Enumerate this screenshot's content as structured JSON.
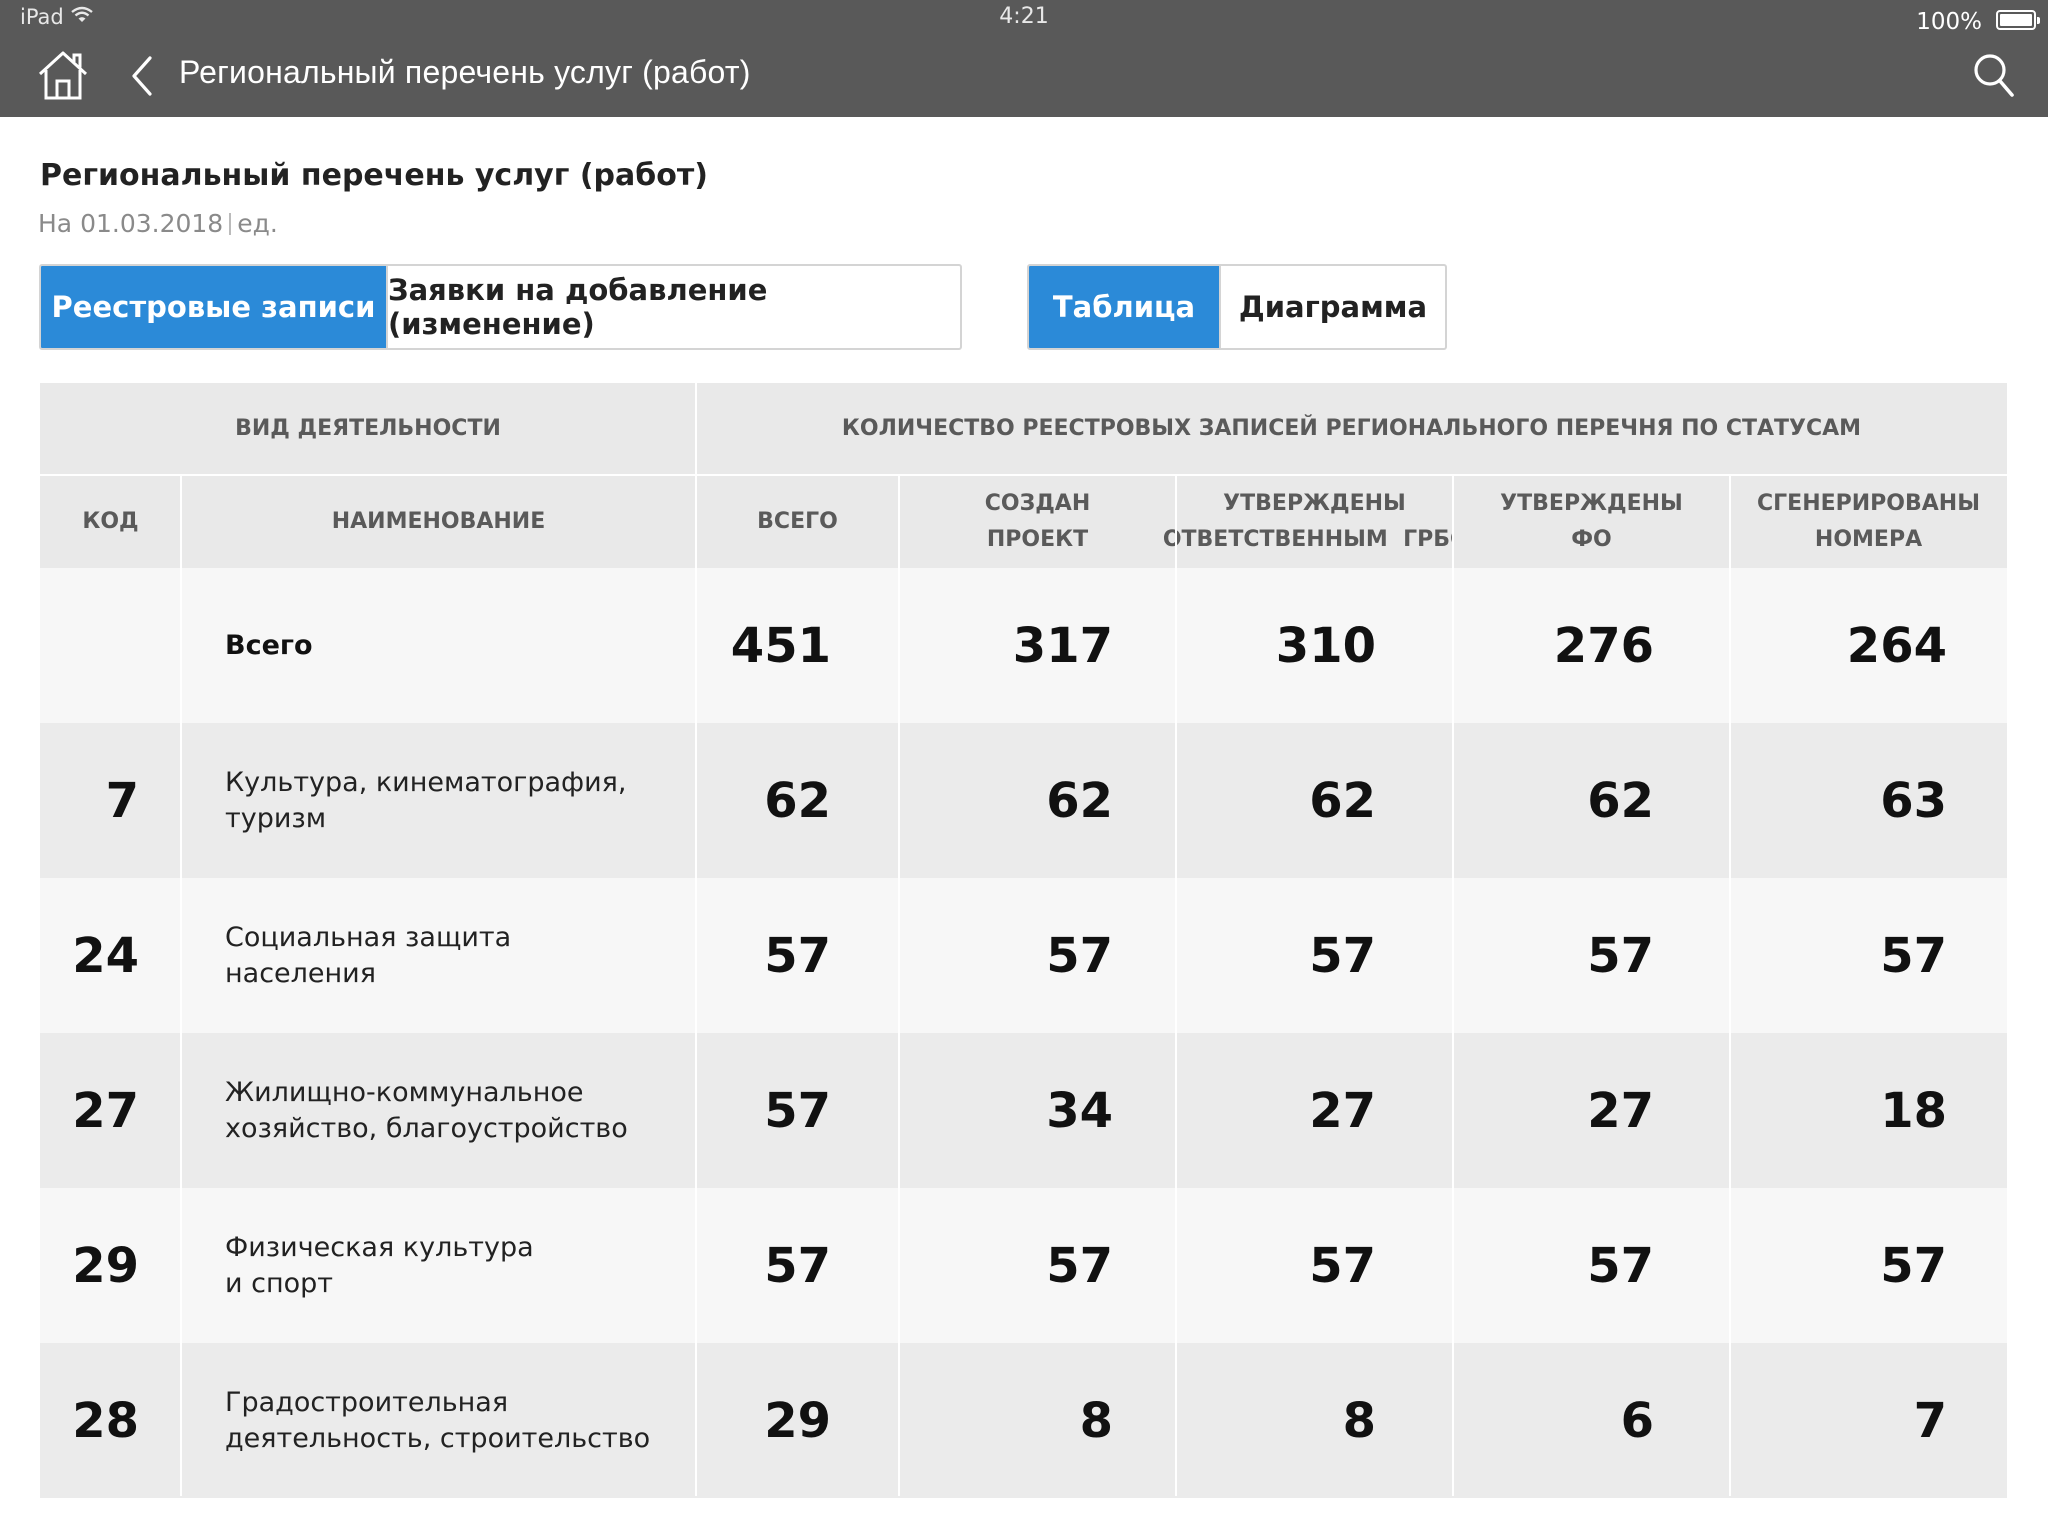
{
  "status_bar": {
    "device": "iPad",
    "time": "4:21",
    "battery": "100%"
  },
  "nav": {
    "title": "Региональный перечень услуг (работ)",
    "home_icon": "home-icon",
    "back_icon": "chevron-left-icon",
    "search_icon": "search-icon"
  },
  "heading": {
    "title": "Региональный перечень услуг (работ)",
    "date": "На 01.03.2018",
    "unit": "ед."
  },
  "tabs_mode": {
    "items": [
      "Реестровые записи",
      "Заявки на добавление (изменение)"
    ],
    "active": 0
  },
  "tabs_view": {
    "items": [
      "Таблица",
      "Диаграмма"
    ],
    "active": 0
  },
  "colors": {
    "accent": "#2b8ad8",
    "topbar": "#595959",
    "header_bg": "#e9e9e9",
    "row_alt": "#ebebeb",
    "row_light": "#f7f7f7"
  },
  "table": {
    "group_headers": {
      "activity": "ВИД ДЕЯТЕЛЬНОСТИ",
      "statuses": "КОЛИЧЕСТВО РЕЕСТРОВЫХ ЗАПИСЕЙ РЕГИОНАЛЬНОГО ПЕРЕЧНЯ ПО СТАТУСАМ"
    },
    "columns": {
      "code": "КОД",
      "name": "НАИМЕНОВАНИЕ",
      "total": "ВСЕГО",
      "created_l1": "СОЗДАН",
      "created_l2": "ПРОЕКТ",
      "approved_grbs_l1": "УТВЕРЖДЕНЫ",
      "approved_grbs_l2": "ОТВЕТСТВЕННЫМ  ГРБС",
      "approved_fo_l1": "УТВЕРЖДЕНЫ",
      "approved_fo_l2": "ФО",
      "numbered_l1": "СГЕНЕРИРОВАНЫ",
      "numbered_l2": "НОМЕРА"
    },
    "rows": [
      {
        "code": "",
        "name_l1": "Всего",
        "name_l2": "",
        "total": "451",
        "created": "317",
        "approved_grbs": "310",
        "approved_fo": "276",
        "numbered": "264"
      },
      {
        "code": "7",
        "name_l1": "Культура, кинематография,",
        "name_l2": "туризм",
        "total": "62",
        "created": "62",
        "approved_grbs": "62",
        "approved_fo": "62",
        "numbered": "63"
      },
      {
        "code": "24",
        "name_l1": "Социальная защита",
        "name_l2": "населения",
        "total": "57",
        "created": "57",
        "approved_grbs": "57",
        "approved_fo": "57",
        "numbered": "57"
      },
      {
        "code": "27",
        "name_l1": "Жилищно-коммунальное",
        "name_l2": "хозяйство, благоустройство",
        "total": "57",
        "created": "34",
        "approved_grbs": "27",
        "approved_fo": "27",
        "numbered": "18"
      },
      {
        "code": "29",
        "name_l1": "Физическая культура",
        "name_l2": "и спорт",
        "total": "57",
        "created": "57",
        "approved_grbs": "57",
        "approved_fo": "57",
        "numbered": "57"
      },
      {
        "code": "28",
        "name_l1": "Градостроительная",
        "name_l2": "деятельность, строительство",
        "total": "29",
        "created": "8",
        "approved_grbs": "8",
        "approved_fo": "6",
        "numbered": "7"
      }
    ]
  }
}
